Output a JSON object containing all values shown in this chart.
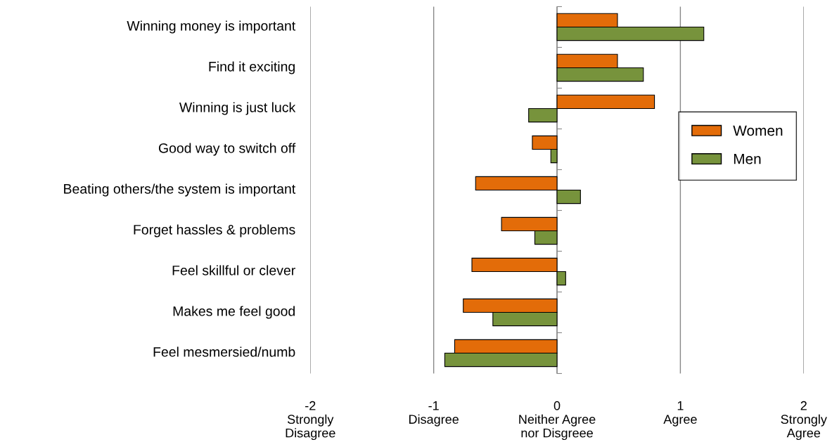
{
  "chart_data": {
    "type": "bar",
    "orientation": "horizontal",
    "categories": [
      "Winning money is important",
      "Find it exciting",
      "Winning is just luck",
      "Good way to switch off",
      "Beating others/the system is important",
      "Forget hassles & problems",
      "Feel skillful or clever",
      "Makes me feel good",
      "Feel mesmersied/numb"
    ],
    "series": [
      {
        "name": "Women",
        "color": "#e36c09",
        "values": [
          0.49,
          0.49,
          0.79,
          -0.2,
          -0.66,
          -0.45,
          -0.69,
          -0.76,
          -0.83
        ]
      },
      {
        "name": "Men",
        "color": "#77933c",
        "values": [
          1.19,
          0.7,
          -0.23,
          -0.05,
          0.19,
          -0.18,
          0.07,
          -0.52,
          -0.91
        ]
      }
    ],
    "xlim": [
      -2,
      2
    ],
    "xticks": [
      {
        "value": -2,
        "label": "-2\nStrongly\nDisagree"
      },
      {
        "value": -1,
        "label": "-1\nDisagree"
      },
      {
        "value": 0,
        "label": "0\nNeither Agree\nnor Disgreee"
      },
      {
        "value": 1,
        "label": "1\nAgree"
      },
      {
        "value": 2,
        "label": "2\nStrongly\nAgree"
      }
    ],
    "grid": "x",
    "legend": "right"
  }
}
